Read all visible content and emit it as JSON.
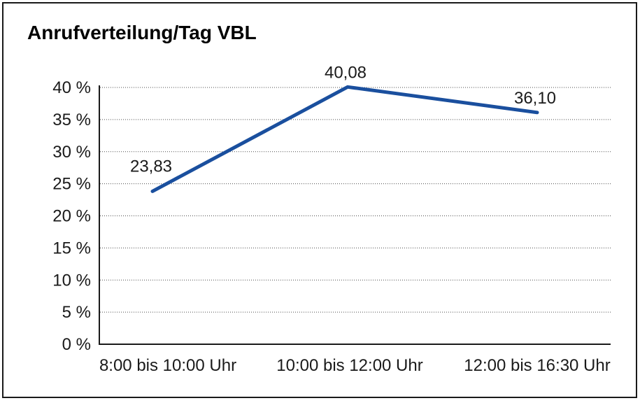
{
  "chart_data": {
    "type": "line",
    "title": "Anrufverteilung/Tag VBL",
    "categories": [
      "8:00 bis 10:00 Uhr",
      "10:00 bis 12:00 Uhr",
      "12:00 bis 16:30 Uhr"
    ],
    "values": [
      23.83,
      40.08,
      36.1
    ],
    "point_labels": [
      "23,83",
      "40,08",
      "36,10"
    ],
    "y_ticks": [
      "0 %",
      "5 %",
      "10 %",
      "15 %",
      "20 %",
      "25 %",
      "30 %",
      "35 %",
      "40 %"
    ],
    "ylim": [
      0,
      40
    ],
    "y_step": 5,
    "grid": "horizontal-dotted",
    "legend_position": "none",
    "colors": {
      "line": "#1a4f9e",
      "axis": "#1a1a1a",
      "gridline": "#4d4d4d",
      "text": "#1a1a1a"
    }
  }
}
